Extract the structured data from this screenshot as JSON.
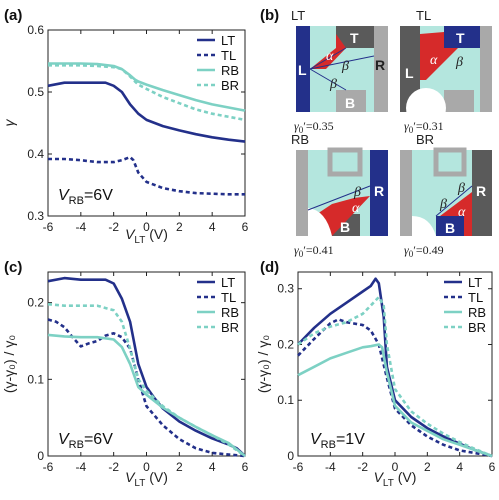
{
  "colors": {
    "dark_blue": "#23308a",
    "teal": "#7dd1c4",
    "light_teal": "#b4e6de",
    "red": "#d62a2a",
    "gray": "#a9a9a9",
    "dark_gray": "#5a5a5a"
  },
  "chart_data": [
    {
      "panel": "(a)",
      "type": "line",
      "xlabel_main": "V",
      "xlabel_sub": "LT",
      "xlabel_unit": "(V)",
      "ylabel": "γ",
      "xlim": [
        -6,
        6
      ],
      "ylim": [
        0.3,
        0.6
      ],
      "xticks": [
        -6,
        -4,
        -2,
        0,
        2,
        4,
        6
      ],
      "yticks": [
        0.3,
        0.4,
        0.5,
        0.6
      ],
      "ytick_labels": [
        "0.3",
        "0.4",
        "0.5",
        "0.6"
      ],
      "annotation_main": "V",
      "annotation_sub": "RB",
      "annotation_value": "=6V",
      "legend_position": "top-right",
      "series": [
        {
          "name": "LT",
          "style": "solid",
          "color": "#23308a",
          "x": [
            -6,
            -5,
            -4,
            -3,
            -2.5,
            -2,
            -1.5,
            -1,
            -0.5,
            0,
            0.5,
            1,
            2,
            3,
            4,
            5,
            6
          ],
          "y": [
            0.51,
            0.515,
            0.515,
            0.515,
            0.515,
            0.51,
            0.5,
            0.48,
            0.465,
            0.455,
            0.45,
            0.445,
            0.438,
            0.432,
            0.427,
            0.423,
            0.42
          ]
        },
        {
          "name": "TL",
          "style": "dashed",
          "color": "#23308a",
          "x": [
            -6,
            -5,
            -4,
            -3,
            -2,
            -1.5,
            -1,
            -0.8,
            -0.5,
            0,
            1,
            2,
            3,
            4,
            5,
            6
          ],
          "y": [
            0.392,
            0.392,
            0.39,
            0.387,
            0.387,
            0.39,
            0.395,
            0.39,
            0.37,
            0.355,
            0.345,
            0.34,
            0.337,
            0.336,
            0.335,
            0.335
          ]
        },
        {
          "name": "RB",
          "style": "solid",
          "color": "#7dd1c4",
          "x": [
            -6,
            -5,
            -4,
            -3,
            -2,
            -1.5,
            -1,
            -0.7,
            -0.5,
            0,
            1,
            2,
            3,
            4,
            5,
            6
          ],
          "y": [
            0.546,
            0.546,
            0.546,
            0.545,
            0.542,
            0.537,
            0.527,
            0.52,
            0.517,
            0.512,
            0.503,
            0.495,
            0.487,
            0.48,
            0.475,
            0.47
          ]
        },
        {
          "name": "BR",
          "style": "dashed",
          "color": "#7dd1c4",
          "x": [
            -6,
            -5,
            -4,
            -3,
            -2,
            -1.5,
            -1,
            -0.7,
            -0.5,
            0,
            1,
            2,
            3,
            4,
            5,
            6
          ],
          "y": [
            0.543,
            0.543,
            0.543,
            0.542,
            0.54,
            0.537,
            0.525,
            0.517,
            0.512,
            0.505,
            0.492,
            0.482,
            0.472,
            0.465,
            0.46,
            0.455
          ]
        }
      ]
    },
    {
      "panel": "(c)",
      "type": "line",
      "xlabel_main": "V",
      "xlabel_sub": "LT",
      "xlabel_unit": "(V)",
      "ylabel": "(γ-γ₀) / γ₀",
      "xlim": [
        -6,
        6
      ],
      "ylim": [
        0,
        0.24
      ],
      "xticks": [
        -6,
        -4,
        -2,
        0,
        2,
        4,
        6
      ],
      "yticks": [
        0,
        0.1,
        0.2
      ],
      "ytick_labels": [
        "0",
        "0.1",
        "0.2"
      ],
      "annotation_main": "V",
      "annotation_sub": "RB",
      "annotation_value": "=6V",
      "legend_position": "top-right",
      "series": [
        {
          "name": "LT",
          "style": "solid",
          "color": "#23308a",
          "x": [
            -6,
            -5,
            -4,
            -3,
            -2.5,
            -2,
            -1.5,
            -1,
            -0.5,
            0,
            0.5,
            1,
            2,
            3,
            4,
            5,
            5.5,
            6
          ],
          "y": [
            0.228,
            0.232,
            0.23,
            0.23,
            0.23,
            0.225,
            0.205,
            0.175,
            0.12,
            0.09,
            0.075,
            0.062,
            0.045,
            0.033,
            0.023,
            0.015,
            0.01,
            0.0
          ]
        },
        {
          "name": "TL",
          "style": "dashed",
          "color": "#23308a",
          "x": [
            -6,
            -5.5,
            -5,
            -4.5,
            -4,
            -3.5,
            -3,
            -2.5,
            -2,
            -1.5,
            -1,
            -0.5,
            0,
            1,
            2,
            3,
            4,
            5,
            6
          ],
          "y": [
            0.178,
            0.175,
            0.168,
            0.155,
            0.143,
            0.147,
            0.15,
            0.157,
            0.16,
            0.155,
            0.14,
            0.1,
            0.065,
            0.04,
            0.022,
            0.01,
            0.004,
            0.002,
            0.0
          ]
        },
        {
          "name": "RB",
          "style": "solid",
          "color": "#7dd1c4",
          "x": [
            -6,
            -5,
            -4,
            -3,
            -2,
            -1.5,
            -1,
            -0.5,
            0,
            1,
            2,
            3,
            4,
            5,
            6
          ],
          "y": [
            0.158,
            0.156,
            0.155,
            0.155,
            0.152,
            0.142,
            0.12,
            0.09,
            0.08,
            0.063,
            0.05,
            0.038,
            0.027,
            0.017,
            0.0
          ]
        },
        {
          "name": "BR",
          "style": "dashed",
          "color": "#7dd1c4",
          "x": [
            -6,
            -5,
            -4,
            -3,
            -2,
            -1.5,
            -1,
            -0.5,
            0,
            1,
            2,
            3,
            4,
            5,
            6
          ],
          "y": [
            0.198,
            0.196,
            0.196,
            0.196,
            0.19,
            0.175,
            0.14,
            0.1,
            0.085,
            0.065,
            0.05,
            0.038,
            0.027,
            0.015,
            0.0
          ]
        }
      ]
    },
    {
      "panel": "(d)",
      "type": "line",
      "xlabel_main": "V",
      "xlabel_sub": "LT",
      "xlabel_unit": "(V)",
      "ylabel": "(γ-γ₀) / γ₀",
      "xlim": [
        -6,
        6
      ],
      "ylim": [
        0,
        0.33
      ],
      "xticks": [
        -6,
        -4,
        -2,
        0,
        2,
        4,
        6
      ],
      "yticks": [
        0,
        0.1,
        0.2,
        0.3
      ],
      "ytick_labels": [
        "0",
        "0.1",
        "0.2",
        "0.3"
      ],
      "annotation_main": "V",
      "annotation_sub": "RB",
      "annotation_value": "=1V",
      "legend_position": "top-right",
      "series": [
        {
          "name": "LT",
          "style": "solid",
          "color": "#23308a",
          "x": [
            -6,
            -5,
            -4,
            -3,
            -2,
            -1.5,
            -1.2,
            -1,
            -0.7,
            -0.5,
            0,
            1,
            2,
            3,
            4,
            5,
            6
          ],
          "y": [
            0.2,
            0.23,
            0.255,
            0.275,
            0.295,
            0.305,
            0.318,
            0.31,
            0.25,
            0.16,
            0.1,
            0.07,
            0.05,
            0.035,
            0.022,
            0.01,
            0.0
          ]
        },
        {
          "name": "TL",
          "style": "dashed",
          "color": "#23308a",
          "x": [
            -6,
            -5,
            -4,
            -3.5,
            -3,
            -2,
            -1.5,
            -1,
            -0.5,
            0,
            1,
            2,
            3,
            4,
            5,
            6
          ],
          "y": [
            0.18,
            0.21,
            0.238,
            0.245,
            0.24,
            0.235,
            0.225,
            0.2,
            0.14,
            0.085,
            0.055,
            0.035,
            0.02,
            0.01,
            0.005,
            0.0
          ]
        },
        {
          "name": "RB",
          "style": "solid",
          "color": "#7dd1c4",
          "x": [
            -6,
            -5,
            -4,
            -3,
            -2,
            -1.5,
            -1,
            -0.8,
            -0.5,
            0,
            1,
            2,
            3,
            4,
            5,
            6
          ],
          "y": [
            0.145,
            0.16,
            0.175,
            0.185,
            0.195,
            0.197,
            0.2,
            0.195,
            0.15,
            0.09,
            0.06,
            0.045,
            0.03,
            0.02,
            0.01,
            0.0
          ]
        },
        {
          "name": "BR",
          "style": "dashed",
          "color": "#7dd1c4",
          "x": [
            -6,
            -5,
            -4,
            -3,
            -2,
            -1.5,
            -1,
            -0.7,
            -0.5,
            0,
            1,
            2,
            3,
            4,
            5,
            6
          ],
          "y": [
            0.2,
            0.22,
            0.232,
            0.24,
            0.255,
            0.27,
            0.285,
            0.27,
            0.2,
            0.12,
            0.08,
            0.058,
            0.04,
            0.025,
            0.012,
            0.0
          ]
        }
      ]
    }
  ],
  "panel_b": {
    "label": "(b)",
    "diagrams": [
      {
        "title": "LT",
        "gamma_value": "=0.35"
      },
      {
        "title": "TL",
        "gamma_value": "=0.31"
      },
      {
        "title": "RB",
        "gamma_value": "=0.41"
      },
      {
        "title": "BR",
        "gamma_value": "=0.49"
      }
    ],
    "gamma_label": "γ",
    "gamma_sub": "0",
    "gamma_prime": "′",
    "region_letters": {
      "L": "L",
      "T": "T",
      "R": "R",
      "B": "B",
      "alpha": "α",
      "beta": "β"
    }
  }
}
